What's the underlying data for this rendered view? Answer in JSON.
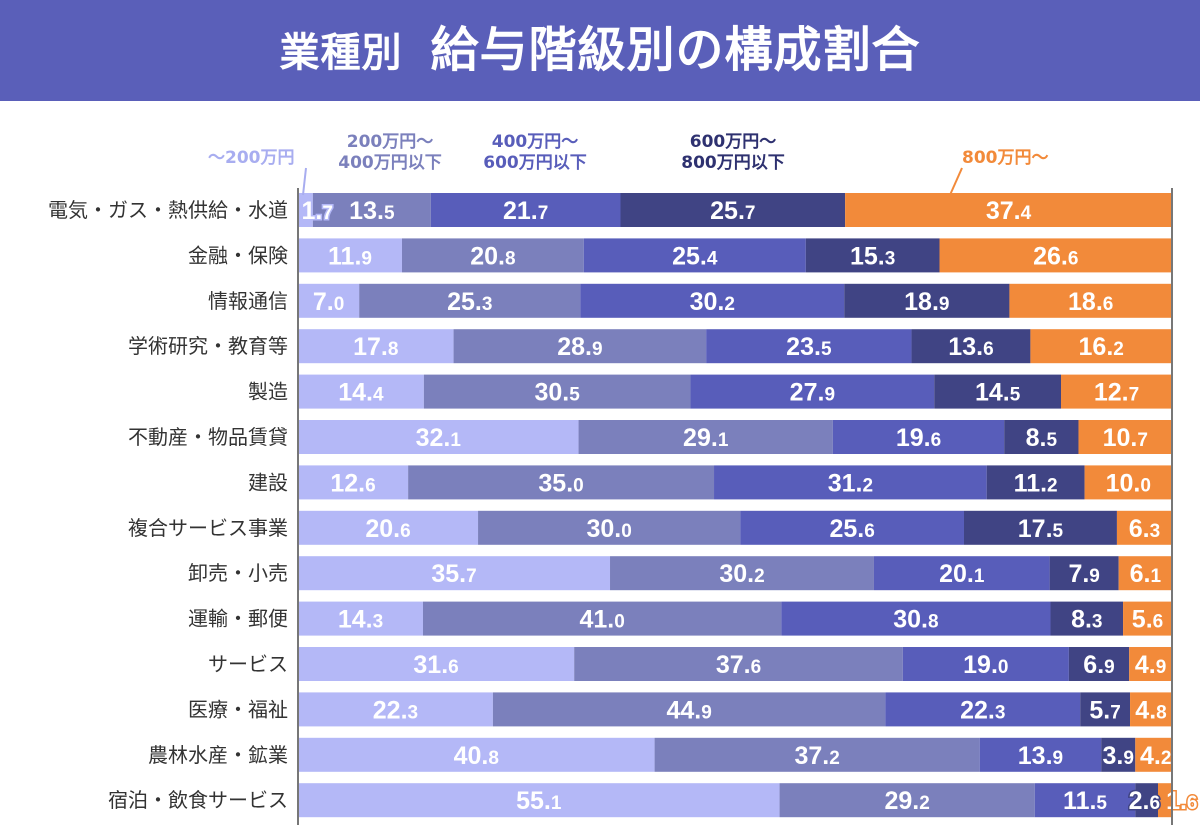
{
  "title_prefix": "業種別",
  "title": "給与階級別の構成割合",
  "chart_data": {
    "type": "bar",
    "orientation": "horizontal",
    "stacked": true,
    "xlim": [
      0,
      100
    ],
    "series": [
      {
        "name": "～200万円",
        "color": "#b4b8f7",
        "values": [
          1.7,
          11.9,
          7.0,
          17.8,
          14.4,
          32.1,
          12.6,
          20.6,
          35.7,
          14.3,
          31.6,
          22.3,
          40.8,
          55.1
        ]
      },
      {
        "name": "200万円～ 400万円以下",
        "color": "#7b80bc",
        "values": [
          13.5,
          20.8,
          25.3,
          28.9,
          30.5,
          29.1,
          35.0,
          30.0,
          30.2,
          41.0,
          37.6,
          44.9,
          37.2,
          29.2
        ]
      },
      {
        "name": "400万円～ 600万円以下",
        "color": "#585dba",
        "values": [
          21.7,
          25.4,
          30.2,
          23.5,
          27.9,
          19.6,
          31.2,
          25.6,
          20.1,
          30.8,
          19.0,
          22.3,
          13.9,
          11.5
        ]
      },
      {
        "name": "600万円～ 800万円以下",
        "color": "#404484",
        "values": [
          25.7,
          15.3,
          18.9,
          13.6,
          14.5,
          8.5,
          11.2,
          17.5,
          7.9,
          8.3,
          6.9,
          5.7,
          3.9,
          2.6
        ]
      },
      {
        "name": "800万円～",
        "color": "#f28a3a",
        "values": [
          37.4,
          26.6,
          18.6,
          16.2,
          12.7,
          10.7,
          10.0,
          6.3,
          6.1,
          5.6,
          4.9,
          4.8,
          4.2,
          1.6
        ]
      }
    ],
    "categories": [
      "電気・ガス・熱供給・水道",
      "金融・保険",
      "情報通信",
      "学術研究・教育等",
      "製造",
      "不動産・物品賃貸",
      "建設",
      "複合サービス事業",
      "卸売・小売",
      "運輸・郵便",
      "サービス",
      "医療・福祉",
      "農林水産・鉱業",
      "宿泊・飲食サービス"
    ]
  }
}
